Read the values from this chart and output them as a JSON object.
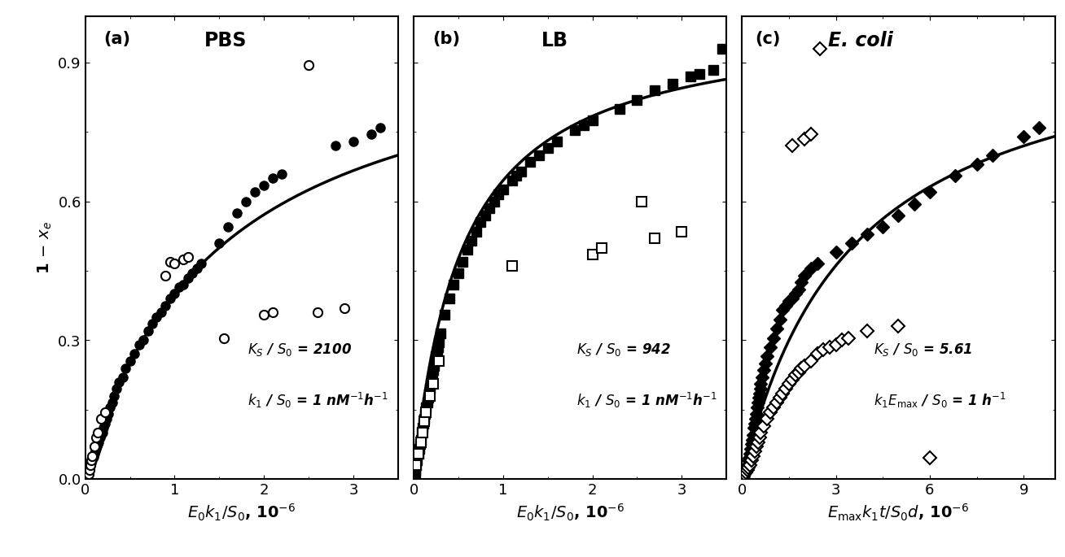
{
  "panel_a": {
    "title": "PBS",
    "label": "(a)",
    "xlabel": "$E_0k_1 / S_0$, 10$^{-6}$",
    "ylabel": "1 − $x_e$",
    "xlim": [
      0,
      3.5
    ],
    "ylim": [
      0,
      1.0
    ],
    "xticks": [
      0,
      1,
      2,
      3
    ],
    "yticks": [
      0.0,
      0.3,
      0.6,
      0.9
    ],
    "KS_S0": "2100",
    "k1_S0": "1 nM$^{-1}$h$^{-1}$",
    "Km": 1.5,
    "filled_circles": [
      [
        0.02,
        0.005
      ],
      [
        0.03,
        0.01
      ],
      [
        0.04,
        0.02
      ],
      [
        0.05,
        0.025
      ],
      [
        0.06,
        0.03
      ],
      [
        0.07,
        0.035
      ],
      [
        0.08,
        0.04
      ],
      [
        0.09,
        0.048
      ],
      [
        0.1,
        0.055
      ],
      [
        0.11,
        0.06
      ],
      [
        0.12,
        0.065
      ],
      [
        0.13,
        0.07
      ],
      [
        0.14,
        0.075
      ],
      [
        0.15,
        0.08
      ],
      [
        0.17,
        0.09
      ],
      [
        0.18,
        0.095
      ],
      [
        0.19,
        0.1
      ],
      [
        0.2,
        0.11
      ],
      [
        0.22,
        0.12
      ],
      [
        0.24,
        0.13
      ],
      [
        0.26,
        0.14
      ],
      [
        0.28,
        0.155
      ],
      [
        0.3,
        0.165
      ],
      [
        0.32,
        0.18
      ],
      [
        0.35,
        0.195
      ],
      [
        0.38,
        0.21
      ],
      [
        0.42,
        0.22
      ],
      [
        0.45,
        0.24
      ],
      [
        0.5,
        0.255
      ],
      [
        0.55,
        0.27
      ],
      [
        0.6,
        0.29
      ],
      [
        0.65,
        0.3
      ],
      [
        0.7,
        0.32
      ],
      [
        0.75,
        0.335
      ],
      [
        0.8,
        0.35
      ],
      [
        0.85,
        0.36
      ],
      [
        0.9,
        0.375
      ],
      [
        0.95,
        0.39
      ],
      [
        1.0,
        0.4
      ],
      [
        1.05,
        0.415
      ],
      [
        1.1,
        0.42
      ],
      [
        1.15,
        0.435
      ],
      [
        1.2,
        0.445
      ],
      [
        1.25,
        0.455
      ],
      [
        1.3,
        0.465
      ],
      [
        1.5,
        0.51
      ],
      [
        1.6,
        0.545
      ],
      [
        1.7,
        0.575
      ],
      [
        1.8,
        0.6
      ],
      [
        1.9,
        0.62
      ],
      [
        2.0,
        0.635
      ],
      [
        2.1,
        0.65
      ],
      [
        2.2,
        0.66
      ],
      [
        2.8,
        0.72
      ],
      [
        3.0,
        0.73
      ],
      [
        3.2,
        0.745
      ],
      [
        3.3,
        0.76
      ]
    ],
    "open_circles": [
      [
        0.04,
        0.01
      ],
      [
        0.05,
        0.02
      ],
      [
        0.06,
        0.03
      ],
      [
        0.07,
        0.04
      ],
      [
        0.08,
        0.05
      ],
      [
        0.1,
        0.07
      ],
      [
        0.12,
        0.09
      ],
      [
        0.14,
        0.1
      ],
      [
        0.18,
        0.13
      ],
      [
        0.22,
        0.145
      ],
      [
        0.9,
        0.44
      ],
      [
        0.95,
        0.47
      ],
      [
        1.0,
        0.465
      ],
      [
        1.1,
        0.475
      ],
      [
        1.15,
        0.48
      ],
      [
        1.55,
        0.305
      ],
      [
        2.0,
        0.355
      ],
      [
        2.1,
        0.36
      ],
      [
        2.6,
        0.36
      ],
      [
        2.9,
        0.37
      ],
      [
        2.5,
        0.895
      ]
    ]
  },
  "panel_b": {
    "title": "LB",
    "label": "(b)",
    "xlabel": "$E_0k_1 / S_0$, 10$^{-6}$",
    "xlim": [
      0,
      3.5
    ],
    "ylim": [
      0,
      1.0
    ],
    "xticks": [
      0,
      1,
      2,
      3
    ],
    "yticks": [
      0.0,
      0.3,
      0.6,
      0.9
    ],
    "KS_S0": "942",
    "k1_S0": "1 nM$^{-1}$h$^{-1}$",
    "Km": 0.55,
    "filled_squares": [
      [
        0.005,
        0.005
      ],
      [
        0.01,
        0.01
      ],
      [
        0.015,
        0.015
      ],
      [
        0.02,
        0.02
      ],
      [
        0.03,
        0.03
      ],
      [
        0.04,
        0.04
      ],
      [
        0.05,
        0.055
      ],
      [
        0.06,
        0.065
      ],
      [
        0.07,
        0.075
      ],
      [
        0.08,
        0.085
      ],
      [
        0.09,
        0.1
      ],
      [
        0.1,
        0.11
      ],
      [
        0.11,
        0.12
      ],
      [
        0.12,
        0.13
      ],
      [
        0.13,
        0.14
      ],
      [
        0.14,
        0.155
      ],
      [
        0.15,
        0.165
      ],
      [
        0.16,
        0.175
      ],
      [
        0.17,
        0.185
      ],
      [
        0.18,
        0.195
      ],
      [
        0.19,
        0.205
      ],
      [
        0.2,
        0.215
      ],
      [
        0.21,
        0.225
      ],
      [
        0.22,
        0.235
      ],
      [
        0.23,
        0.245
      ],
      [
        0.24,
        0.255
      ],
      [
        0.25,
        0.265
      ],
      [
        0.26,
        0.275
      ],
      [
        0.27,
        0.285
      ],
      [
        0.28,
        0.295
      ],
      [
        0.3,
        0.315
      ],
      [
        0.35,
        0.355
      ],
      [
        0.4,
        0.39
      ],
      [
        0.45,
        0.42
      ],
      [
        0.5,
        0.445
      ],
      [
        0.55,
        0.47
      ],
      [
        0.6,
        0.495
      ],
      [
        0.65,
        0.515
      ],
      [
        0.7,
        0.535
      ],
      [
        0.75,
        0.555
      ],
      [
        0.8,
        0.57
      ],
      [
        0.85,
        0.585
      ],
      [
        0.9,
        0.6
      ],
      [
        0.95,
        0.615
      ],
      [
        1.0,
        0.625
      ],
      [
        1.1,
        0.645
      ],
      [
        1.15,
        0.655
      ],
      [
        1.2,
        0.665
      ],
      [
        1.3,
        0.685
      ],
      [
        1.4,
        0.7
      ],
      [
        1.5,
        0.715
      ],
      [
        1.6,
        0.73
      ],
      [
        1.8,
        0.755
      ],
      [
        1.9,
        0.765
      ],
      [
        2.0,
        0.775
      ],
      [
        2.3,
        0.8
      ],
      [
        2.5,
        0.82
      ],
      [
        2.7,
        0.84
      ],
      [
        2.9,
        0.855
      ],
      [
        3.1,
        0.87
      ],
      [
        3.2,
        0.875
      ],
      [
        3.35,
        0.885
      ],
      [
        3.45,
        0.93
      ]
    ],
    "open_squares": [
      [
        0.03,
        0.03
      ],
      [
        0.05,
        0.055
      ],
      [
        0.08,
        0.08
      ],
      [
        0.1,
        0.1
      ],
      [
        0.12,
        0.125
      ],
      [
        0.14,
        0.145
      ],
      [
        0.18,
        0.18
      ],
      [
        0.22,
        0.205
      ],
      [
        0.28,
        0.255
      ],
      [
        1.1,
        0.46
      ],
      [
        2.0,
        0.485
      ],
      [
        2.1,
        0.5
      ],
      [
        2.7,
        0.52
      ],
      [
        3.0,
        0.535
      ],
      [
        2.55,
        0.6
      ]
    ]
  },
  "panel_c": {
    "title": "E. coli",
    "label": "(c)",
    "xlabel": "$E_{\\mathrm{max}}k_1t / S_0d$, 10$^{-6}$",
    "xlim": [
      0,
      10.0
    ],
    "ylim": [
      0,
      1.0
    ],
    "xticks": [
      0,
      3,
      6,
      9
    ],
    "yticks": [
      0.0,
      0.3,
      0.6,
      0.9
    ],
    "KS_S0": "5.61",
    "k1Emax_S0": "1 h$^{-1}$",
    "Km": 3.5,
    "filled_diamonds": [
      [
        0.05,
        0.005
      ],
      [
        0.07,
        0.01
      ],
      [
        0.1,
        0.015
      ],
      [
        0.12,
        0.02
      ],
      [
        0.15,
        0.025
      ],
      [
        0.18,
        0.03
      ],
      [
        0.2,
        0.04
      ],
      [
        0.22,
        0.045
      ],
      [
        0.25,
        0.055
      ],
      [
        0.28,
        0.065
      ],
      [
        0.3,
        0.075
      ],
      [
        0.33,
        0.085
      ],
      [
        0.35,
        0.095
      ],
      [
        0.38,
        0.11
      ],
      [
        0.4,
        0.12
      ],
      [
        0.42,
        0.13
      ],
      [
        0.45,
        0.14
      ],
      [
        0.48,
        0.155
      ],
      [
        0.5,
        0.165
      ],
      [
        0.53,
        0.175
      ],
      [
        0.55,
        0.185
      ],
      [
        0.58,
        0.195
      ],
      [
        0.6,
        0.205
      ],
      [
        0.63,
        0.22
      ],
      [
        0.7,
        0.235
      ],
      [
        0.75,
        0.25
      ],
      [
        0.8,
        0.265
      ],
      [
        0.9,
        0.285
      ],
      [
        1.0,
        0.305
      ],
      [
        1.1,
        0.325
      ],
      [
        1.2,
        0.345
      ],
      [
        1.3,
        0.365
      ],
      [
        1.4,
        0.375
      ],
      [
        1.5,
        0.385
      ],
      [
        1.6,
        0.39
      ],
      [
        1.7,
        0.4
      ],
      [
        1.8,
        0.41
      ],
      [
        1.9,
        0.425
      ],
      [
        2.0,
        0.44
      ],
      [
        2.2,
        0.455
      ],
      [
        2.4,
        0.465
      ],
      [
        3.0,
        0.49
      ],
      [
        3.5,
        0.51
      ],
      [
        4.0,
        0.53
      ],
      [
        4.5,
        0.545
      ],
      [
        5.0,
        0.57
      ],
      [
        5.5,
        0.595
      ],
      [
        6.0,
        0.62
      ],
      [
        6.8,
        0.655
      ],
      [
        7.5,
        0.68
      ],
      [
        8.0,
        0.7
      ],
      [
        9.0,
        0.74
      ],
      [
        9.5,
        0.76
      ]
    ],
    "open_diamonds": [
      [
        0.08,
        0.01
      ],
      [
        0.12,
        0.015
      ],
      [
        0.16,
        0.02
      ],
      [
        0.2,
        0.025
      ],
      [
        0.25,
        0.03
      ],
      [
        0.3,
        0.04
      ],
      [
        0.35,
        0.05
      ],
      [
        0.4,
        0.06
      ],
      [
        0.45,
        0.07
      ],
      [
        0.5,
        0.08
      ],
      [
        0.55,
        0.09
      ],
      [
        0.6,
        0.1
      ],
      [
        0.7,
        0.115
      ],
      [
        0.8,
        0.13
      ],
      [
        0.9,
        0.145
      ],
      [
        1.0,
        0.155
      ],
      [
        1.1,
        0.165
      ],
      [
        1.2,
        0.175
      ],
      [
        1.3,
        0.185
      ],
      [
        1.4,
        0.195
      ],
      [
        1.5,
        0.205
      ],
      [
        1.6,
        0.215
      ],
      [
        1.7,
        0.225
      ],
      [
        1.8,
        0.23
      ],
      [
        1.9,
        0.24
      ],
      [
        2.0,
        0.245
      ],
      [
        2.2,
        0.255
      ],
      [
        2.4,
        0.27
      ],
      [
        2.6,
        0.28
      ],
      [
        2.8,
        0.285
      ],
      [
        3.0,
        0.29
      ],
      [
        3.2,
        0.3
      ],
      [
        3.4,
        0.305
      ],
      [
        4.0,
        0.32
      ],
      [
        5.0,
        0.33
      ],
      [
        2.5,
        0.93
      ],
      [
        1.6,
        0.72
      ],
      [
        2.0,
        0.735
      ],
      [
        2.2,
        0.745
      ],
      [
        6.0,
        0.045
      ]
    ]
  },
  "figure_bg": "#ffffff",
  "axes_bg": "#ffffff",
  "text_color": "#000000",
  "line_color": "#000000",
  "marker_color": "#000000",
  "marker_size": 8,
  "line_width": 2.5
}
